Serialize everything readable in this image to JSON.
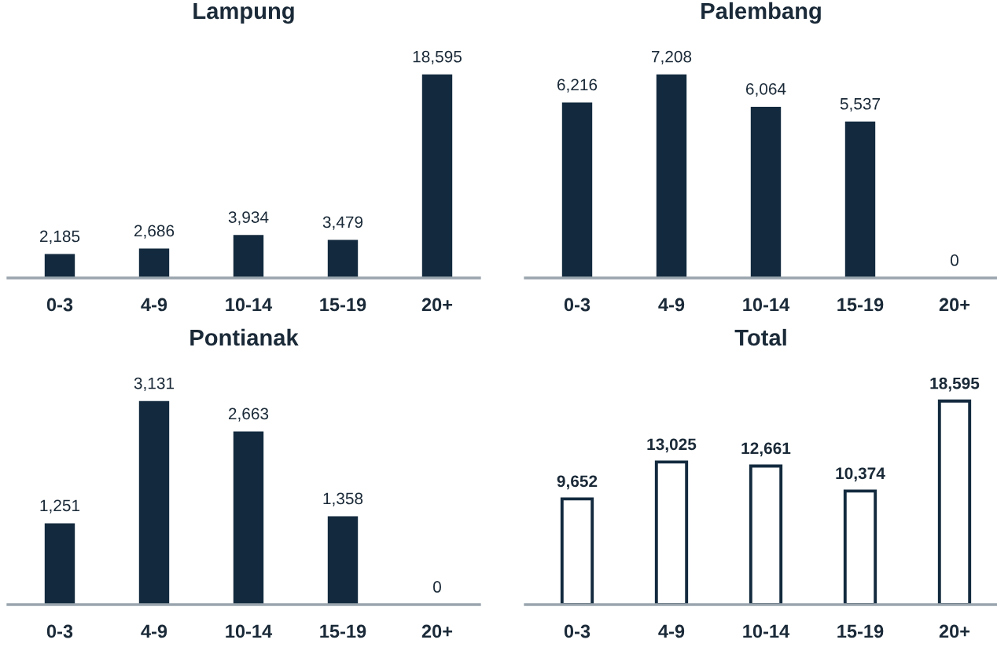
{
  "chart_data": [
    {
      "type": "bar",
      "title": "Lampung",
      "categories": [
        "0-3",
        "4-9",
        "10-14",
        "15-19",
        "20+"
      ],
      "values": [
        2185,
        2686,
        3934,
        3479,
        18595
      ],
      "value_labels": [
        "2,185",
        "2,686",
        "3,934",
        "3,479",
        "18,595"
      ],
      "color": "#132a3e",
      "tick_labels": "x",
      "grid": false,
      "legend": false
    },
    {
      "type": "bar",
      "title": "Palembang",
      "categories": [
        "0-3",
        "4-9",
        "10-14",
        "15-19",
        "20+"
      ],
      "values": [
        6216,
        7208,
        6064,
        5537,
        0
      ],
      "value_labels": [
        "6,216",
        "7,208",
        "6,064",
        "5,537",
        "0"
      ],
      "color": "#132a3e",
      "tick_labels": "x",
      "grid": false,
      "legend": false
    },
    {
      "type": "bar",
      "title": "Pontianak",
      "categories": [
        "0-3",
        "4-9",
        "10-14",
        "15-19",
        "20+"
      ],
      "values": [
        1251,
        3131,
        2663,
        1358,
        0
      ],
      "value_labels": [
        "1,251",
        "3,131",
        "2,663",
        "1,358",
        "0"
      ],
      "color": "#132a3e",
      "tick_labels": "x",
      "grid": false,
      "legend": false
    },
    {
      "type": "bar",
      "title": "Total",
      "categories": [
        "0-3",
        "4-9",
        "10-14",
        "15-19",
        "20+"
      ],
      "values": [
        9652,
        13025,
        12661,
        10374,
        18595
      ],
      "value_labels": [
        "9,652",
        "13,025",
        "12,661",
        "10,374",
        "18,595"
      ],
      "color": "#ffffff",
      "tick_labels": "x",
      "grid": false,
      "legend": false
    }
  ]
}
